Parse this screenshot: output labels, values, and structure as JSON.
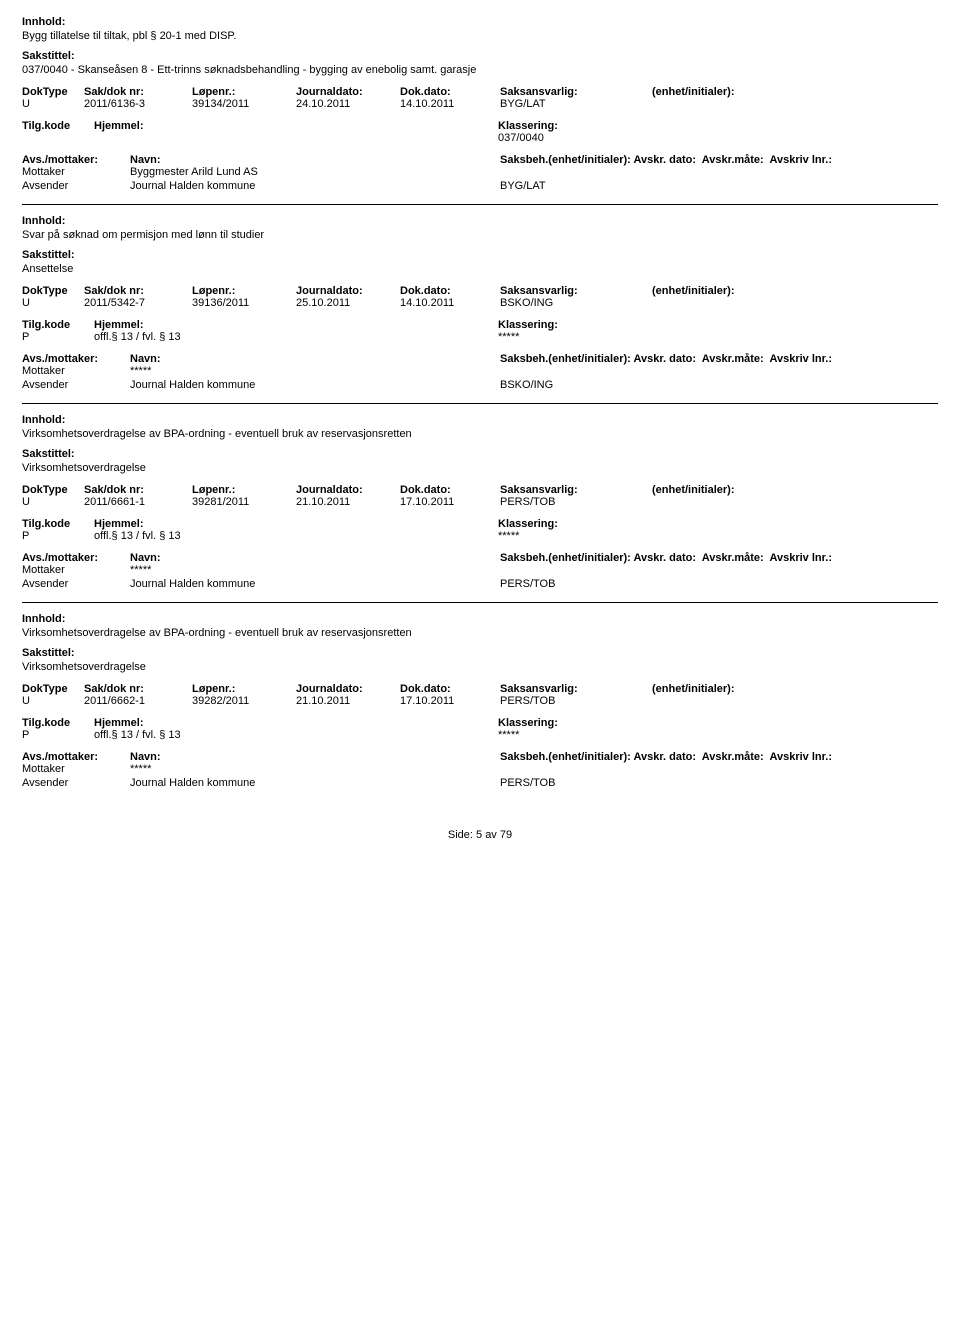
{
  "labels": {
    "innhold": "Innhold:",
    "sakstittel": "Sakstittel:",
    "doktype": "DokType",
    "sakdok": "Sak/dok nr:",
    "lopenr": "Løpenr.:",
    "journaldato": "Journaldato:",
    "dokdato": "Dok.dato:",
    "saksansvarlig": "Saksansvarlig:",
    "enhet": "(enhet/initialer):",
    "tilgkode": "Tilg.kode",
    "hjemmel": "Hjemmel:",
    "klassering": "Klassering:",
    "avsmottaker": "Avs./mottaker:",
    "navn": "Navn:",
    "saksbeh": "Saksbeh.(enhet/initialer):",
    "avskrdato": "Avskr. dato:",
    "avskrmate": "Avskr.måte:",
    "avskrivlnr": "Avskriv lnr.:",
    "mottaker": "Mottaker",
    "avsender": "Avsender"
  },
  "records": [
    {
      "innhold": "Bygg tillatelse til tiltak, pbl § 20-1 med DISP.",
      "sakstittel": "037/0040 - Skanseåsen 8 - Ett-trinns søknadsbehandling - bygging av enebolig samt. garasje",
      "doktype": "U",
      "sakdok": "2011/6136-3",
      "lopenr": "39134/2011",
      "journaldato": "24.10.2011",
      "dokdato": "14.10.2011",
      "saksansvarlig": "BYG/LAT",
      "tilgkode": "",
      "hjemmel": "",
      "klassering": "037/0040",
      "mottaker_navn": "Byggmester Arild Lund AS",
      "avsender_navn": "Journal Halden kommune",
      "avsender_code": "BYG/LAT"
    },
    {
      "innhold": "Svar på søknad om permisjon med lønn til studier",
      "sakstittel": "Ansettelse",
      "doktype": "U",
      "sakdok": "2011/5342-7",
      "lopenr": "39136/2011",
      "journaldato": "25.10.2011",
      "dokdato": "14.10.2011",
      "saksansvarlig": "BSKO/ING",
      "tilgkode": "P",
      "hjemmel": "offl.§ 13 / fvl. § 13",
      "klassering": "*****",
      "mottaker_navn": "*****",
      "avsender_navn": "Journal Halden kommune",
      "avsender_code": "BSKO/ING"
    },
    {
      "innhold": "Virksomhetsoverdragelse av BPA-ordning - eventuell bruk av reservasjonsretten",
      "sakstittel": "Virksomhetsoverdragelse",
      "doktype": "U",
      "sakdok": "2011/6661-1",
      "lopenr": "39281/2011",
      "journaldato": "21.10.2011",
      "dokdato": "17.10.2011",
      "saksansvarlig": "PERS/TOB",
      "tilgkode": "P",
      "hjemmel": "offl.§ 13 / fvl. § 13",
      "klassering": "*****",
      "mottaker_navn": "*****",
      "avsender_navn": "Journal Halden kommune",
      "avsender_code": "PERS/TOB"
    },
    {
      "innhold": "Virksomhetsoverdragelse av BPA-ordning - eventuell bruk av reservasjonsretten",
      "sakstittel": "Virksomhetsoverdragelse",
      "doktype": "U",
      "sakdok": "2011/6662-1",
      "lopenr": "39282/2011",
      "journaldato": "21.10.2011",
      "dokdato": "17.10.2011",
      "saksansvarlig": "PERS/TOB",
      "tilgkode": "P",
      "hjemmel": "offl.§ 13 / fvl. § 13",
      "klassering": "*****",
      "mottaker_navn": "*****",
      "avsender_navn": "Journal Halden kommune",
      "avsender_code": "PERS/TOB"
    }
  ],
  "footer": "Side: 5 av 79"
}
